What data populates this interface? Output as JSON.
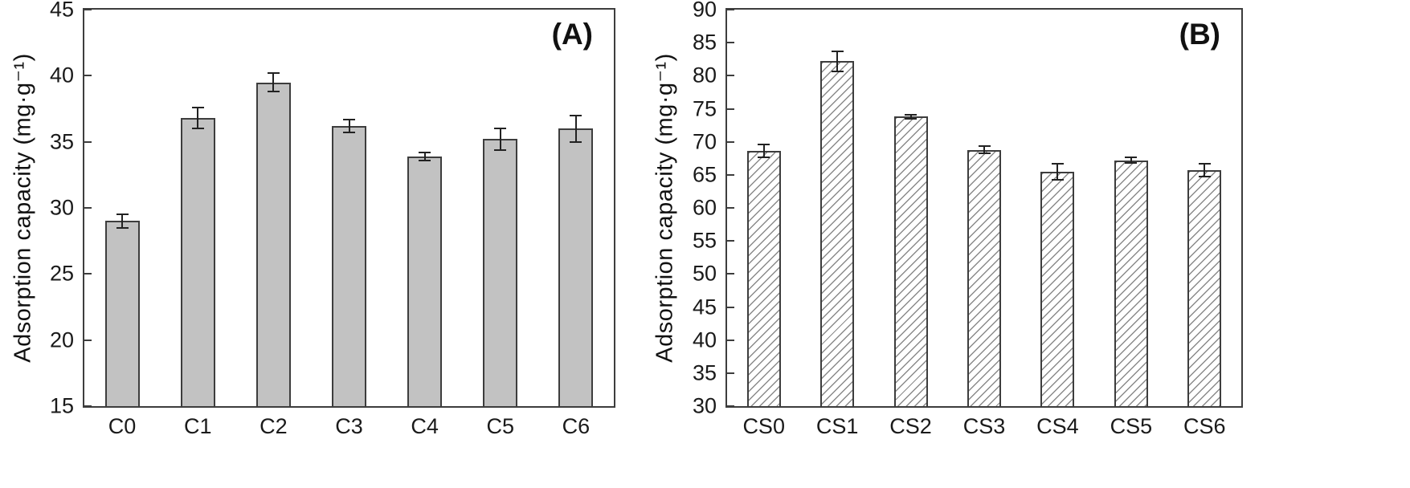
{
  "accent_colors": {
    "axis": "#3d3d3d",
    "solid_bar_fill": "#c2c2c2",
    "hatch_line": "#8a8a8a",
    "error_bar": "#222222"
  },
  "chart_data": [
    {
      "type": "bar",
      "panel_label": "(A)",
      "title": "",
      "xlabel": "",
      "ylabel": "Adsorption capacity (mg·g⁻¹)",
      "categories": [
        "C0",
        "C1",
        "C2",
        "C3",
        "C4",
        "C5",
        "C6"
      ],
      "values": [
        29.0,
        36.8,
        39.5,
        36.2,
        33.9,
        35.2,
        36.0
      ],
      "errors": [
        0.5,
        0.8,
        0.7,
        0.5,
        0.3,
        0.8,
        1.0
      ],
      "ylim": [
        15,
        45
      ],
      "yticks": [
        15,
        20,
        25,
        30,
        35,
        40,
        45
      ],
      "grid": false,
      "legend": "none",
      "bar_style": "solid"
    },
    {
      "type": "bar",
      "panel_label": "(B)",
      "title": "",
      "xlabel": "",
      "ylabel": "Adsorption capacity (mg·g⁻¹)",
      "categories": [
        "CS0",
        "CS1",
        "CS2",
        "CS3",
        "CS4",
        "CS5",
        "CS6"
      ],
      "values": [
        68.6,
        82.2,
        73.8,
        68.8,
        65.5,
        67.2,
        65.7
      ],
      "errors": [
        1.0,
        1.5,
        0.3,
        0.5,
        1.2,
        0.4,
        1.0
      ],
      "ylim": [
        30,
        90
      ],
      "yticks": [
        30,
        35,
        40,
        45,
        50,
        55,
        60,
        65,
        70,
        75,
        80,
        85,
        90
      ],
      "grid": false,
      "legend": "none",
      "bar_style": "hatched"
    }
  ]
}
